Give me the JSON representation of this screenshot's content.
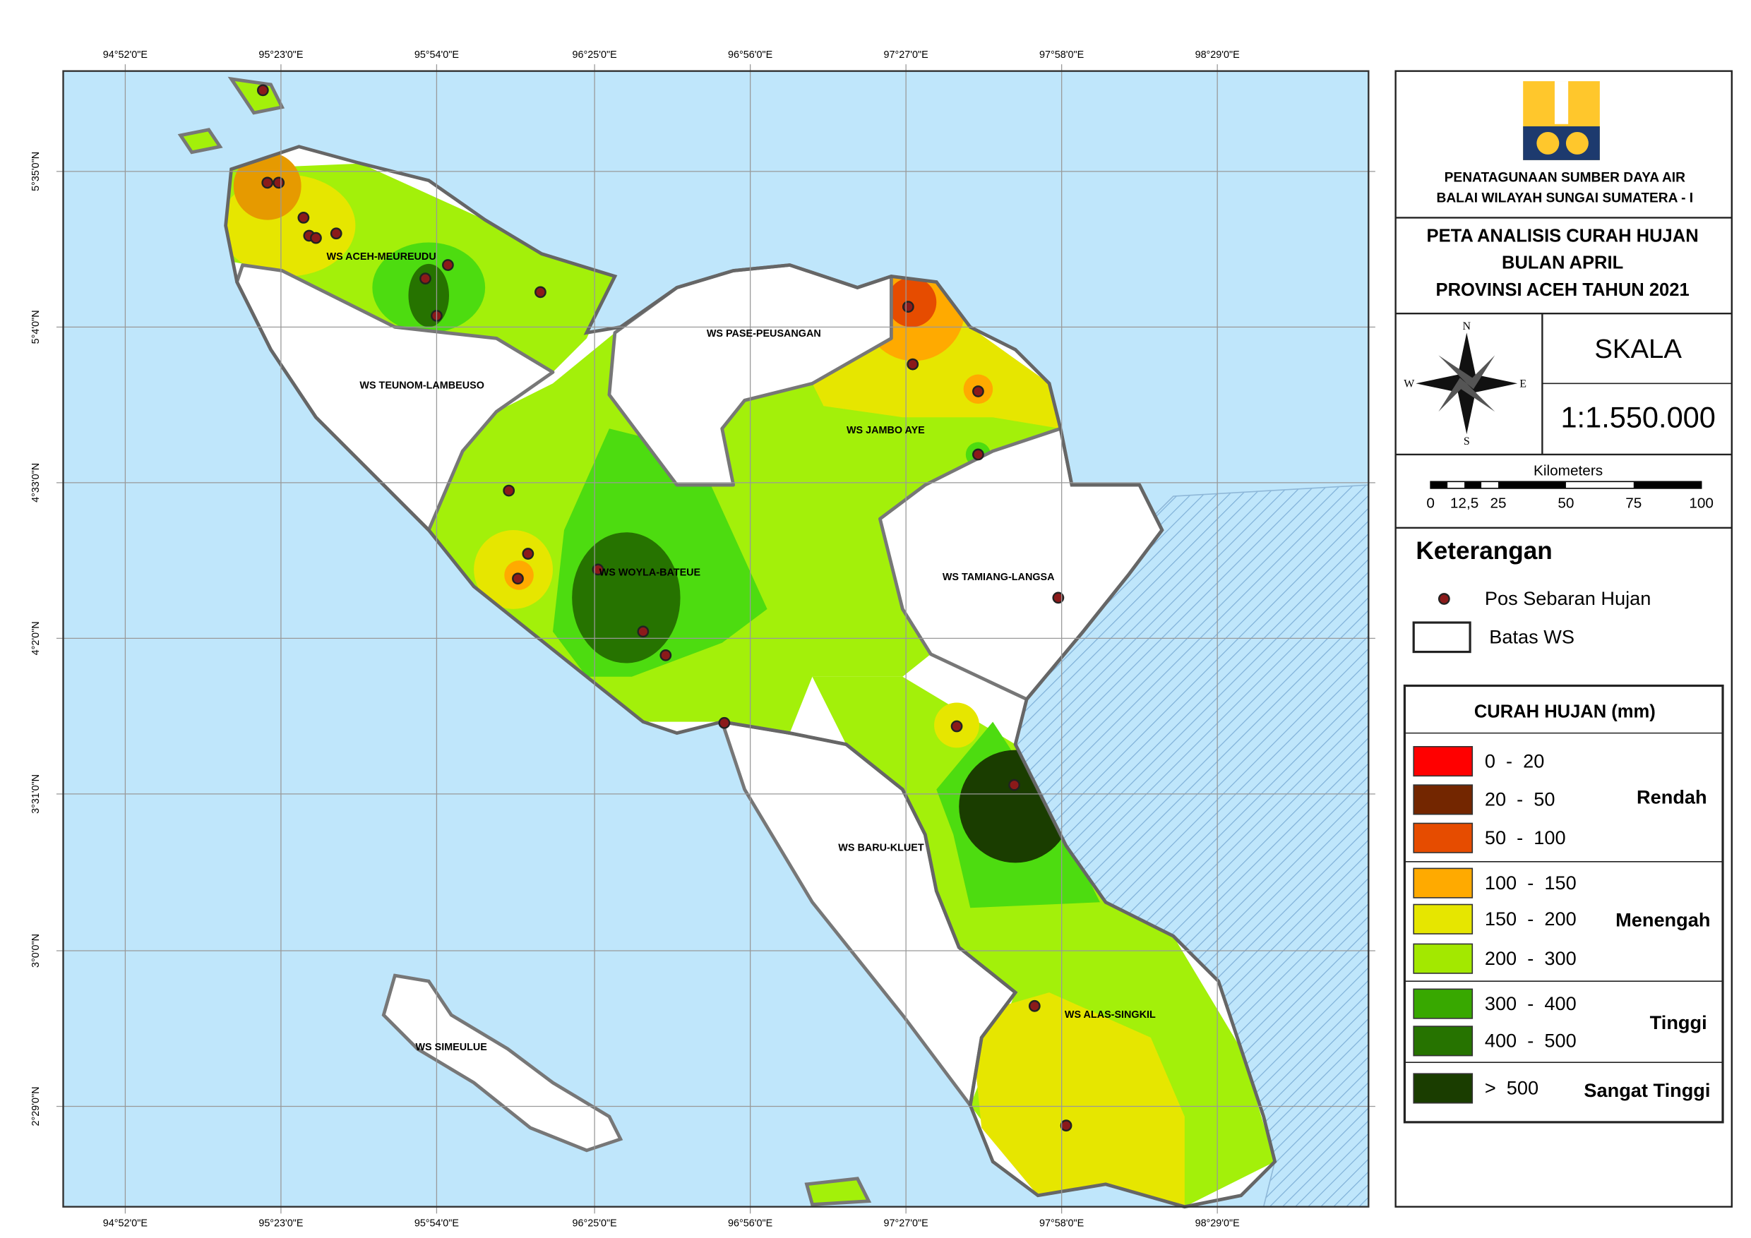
{
  "map": {
    "x_labels": [
      "94°52'0\"E",
      "95°23'0\"E",
      "95°54'0\"E",
      "96°25'0\"E",
      "96°56'0\"E",
      "97°27'0\"E",
      "97°58'0\"E",
      "98°29'0\"E"
    ],
    "y_labels": [
      "5°35'0\"N",
      "5°4'0\"N",
      "4°33'0\"N",
      "4°2'0\"N",
      "3°31'0\"N",
      "3°0'0\"N",
      "2°29'0\"N"
    ],
    "regions": [
      "WS ACEH-MEUREUDU",
      "WS PASE-PEUSANGAN",
      "WS TEUNOM-LAMBEUSO",
      "WS JAMBO AYE",
      "WS WOYLA-BATEUE",
      "WS TAMIANG-LANGSA",
      "WS BARU-KLUET",
      "WS ALAS-SINGKIL",
      "WS SIMEULUE"
    ]
  },
  "legend": {
    "agency": [
      "PENATAGUNAAN SUMBER DAYA AIR",
      "BALAI WILAYAH SUNGAI SUMATERA - I"
    ],
    "title": [
      "PETA ANALISIS CURAH HUJAN",
      "BULAN APRIL",
      "PROVINSI ACEH TAHUN 2021"
    ],
    "compass": {
      "n": "N",
      "e": "E",
      "s": "S",
      "w": "W"
    },
    "scale_heading": "SKALA",
    "scale": "1:1.550.000",
    "scalebar_unit": "Kilometers",
    "scalebar_labels": [
      "0",
      "12,5",
      "25",
      "50",
      "75",
      "100"
    ],
    "keterangan": "Keterangan",
    "symbols": [
      "Pos Sebaran Hujan",
      "Batas WS"
    ],
    "rain_title": "CURAH HUJAN (mm)",
    "classes": [
      {
        "range": "0  -  20",
        "color": "#ff0000"
      },
      {
        "range": "20  -  50",
        "color": "#732600"
      },
      {
        "range": "50  -  100",
        "color": "#e64c00"
      },
      {
        "range": "100  -  150",
        "color": "#ffaa00"
      },
      {
        "range": "150  -  200",
        "color": "#e6e600"
      },
      {
        "range": "200  -  300",
        "color": "#a3e800"
      },
      {
        "range": "300  -  400",
        "color": "#38a800"
      },
      {
        "range": "400  -  500",
        "color": "#267300"
      },
      {
        "range": ">  500",
        "color": "#1a3d00"
      }
    ],
    "groups": [
      "Rendah",
      "Menengah",
      "Tinggi",
      "Sangat Tinggi"
    ]
  }
}
